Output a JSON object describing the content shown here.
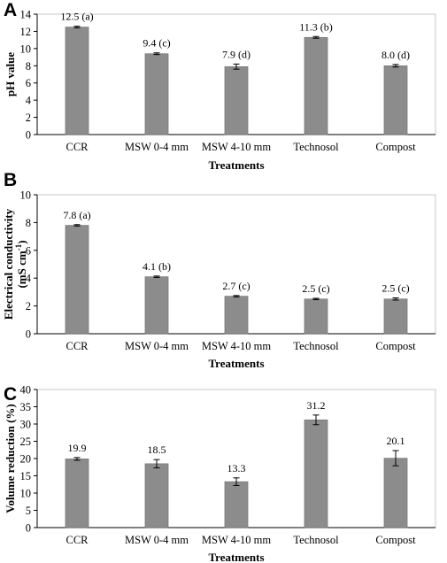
{
  "chart_data": [
    {
      "panel": "A",
      "type": "bar",
      "categories": [
        "CCR",
        "MSW 0-4 mm",
        "MSW 4-10 mm",
        "Technosol",
        "Compost"
      ],
      "values": [
        12.5,
        9.4,
        7.9,
        11.3,
        8.0
      ],
      "errors": [
        0.1,
        0.1,
        0.3,
        0.1,
        0.15
      ],
      "data_labels": [
        "12.5 (a)",
        "9.4 (c)",
        "7.9 (d)",
        "11.3 (b)",
        "8.0 (d)"
      ],
      "xlabel": "Treatments",
      "ylabel": "pH value",
      "ylim": [
        0,
        14
      ],
      "yticks": [
        0,
        2,
        4,
        6,
        8,
        10,
        12,
        14
      ],
      "bar_color": "#8c8c8c"
    },
    {
      "panel": "B",
      "type": "bar",
      "categories": [
        "CCR",
        "MSW 0-4 mm",
        "MSW 4-10 mm",
        "Technosol",
        "Compost"
      ],
      "values": [
        7.8,
        4.1,
        2.7,
        2.5,
        2.5
      ],
      "errors": [
        0.05,
        0.05,
        0.05,
        0.05,
        0.08
      ],
      "data_labels": [
        "7.8 (a)",
        "4.1 (b)",
        "2.7 (c)",
        "2.5 (c)",
        "2.5 (c)"
      ],
      "xlabel": "Treatments",
      "ylabel": "Electrical conductivity",
      "ylabel2": "(mS cm",
      "ylabel2_sup": "-1",
      "ylabel2_end": ")",
      "ylim": [
        0,
        10
      ],
      "yticks": [
        0,
        2,
        4,
        6,
        8,
        10
      ],
      "bar_color": "#8c8c8c"
    },
    {
      "panel": "C",
      "type": "bar",
      "categories": [
        "CCR",
        "MSW 0-4 mm",
        "MSW 4-10 mm",
        "Technosol",
        "Compost"
      ],
      "values": [
        19.9,
        18.5,
        13.3,
        31.2,
        20.1
      ],
      "errors": [
        0.4,
        1.2,
        1.1,
        1.4,
        2.2
      ],
      "data_labels": [
        "19.9",
        "18.5",
        "13.3",
        "31.2",
        "20.1"
      ],
      "xlabel": "Treatments",
      "ylabel": "Volume reduction (%)",
      "ylim": [
        0,
        40
      ],
      "yticks": [
        0,
        5,
        10,
        15,
        20,
        25,
        30,
        35,
        40
      ],
      "bar_color": "#8c8c8c"
    }
  ]
}
